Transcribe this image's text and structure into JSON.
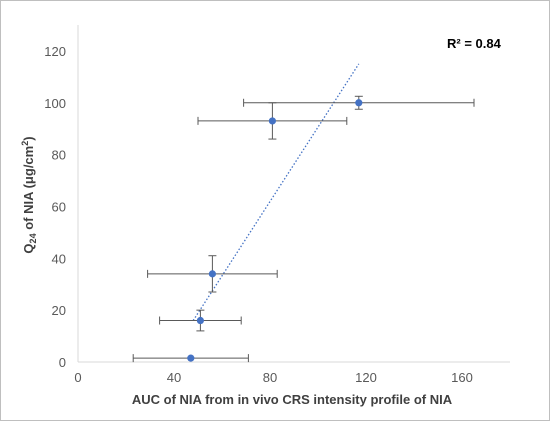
{
  "chart_data": {
    "type": "scatter",
    "title": "",
    "xlabel": "AUC of NIA from in vivo CRS intensity profile of NIA",
    "ylabel_parts": [
      "Q",
      "24",
      " of NIA (μg/cm",
      "2",
      ")"
    ],
    "xlim": [
      0,
      180
    ],
    "ylim": [
      0,
      130
    ],
    "x_ticks": [
      0,
      40,
      80,
      120,
      160
    ],
    "y_ticks": [
      0,
      20,
      40,
      60,
      80,
      100,
      120
    ],
    "grid": false,
    "legend": "none",
    "annotation": "R² = 0.84",
    "marker_color": "#4472c4",
    "errorbar_color": "#595959",
    "trendline": {
      "style": "dotted",
      "color": "#4472c4",
      "x_start": 48,
      "y_start": 16,
      "x_end": 117,
      "y_end": 115
    },
    "points": [
      {
        "x": 47,
        "y": 1.5,
        "xerr": 24,
        "yerr": 0
      },
      {
        "x": 51,
        "y": 16,
        "xerr": 17,
        "yerr": 4
      },
      {
        "x": 56,
        "y": 34,
        "xerr": 27,
        "yerr": 7
      },
      {
        "x": 81,
        "y": 93,
        "xerr": 31,
        "yerr": 7
      },
      {
        "x": 117,
        "y": 100,
        "xerr": 48,
        "yerr": 2.5
      }
    ]
  }
}
